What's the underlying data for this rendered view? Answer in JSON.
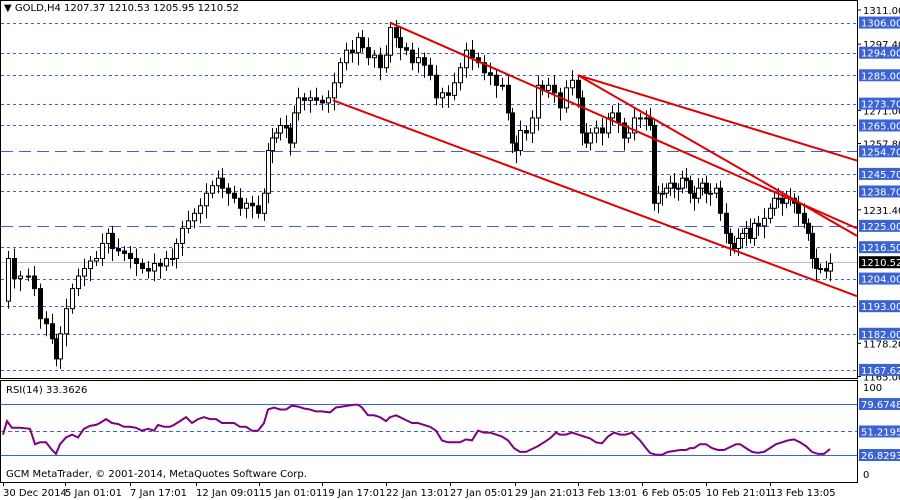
{
  "header": {
    "symbol": "GOLD,H4",
    "ohlc": "1207.37 1210.53 1205.95 1210.52",
    "title_text": "GOLD,H4  1207.37 1210.53 1205.95 1210.52"
  },
  "rsi_panel": {
    "title": "RSI(14) 33.3626",
    "scale": [
      "100",
      "0"
    ],
    "levels": [
      {
        "label": "79.6748",
        "value": 79.6748,
        "style": "solid"
      },
      {
        "label": "51.2195",
        "value": 51.2195,
        "style": "dotted"
      },
      {
        "label": "26.8293",
        "value": 26.8293,
        "style": "solid"
      }
    ]
  },
  "footer": {
    "copyright": "GCM MetaTrader, © 2001-2014, MetaQuotes Software Corp."
  },
  "colors": {
    "level_line": "#3b63d4",
    "label_bg": "#3b63d4",
    "trend_line": "#e00000",
    "rsi_line": "#800080",
    "current_price_bg": "#000000"
  },
  "chart_data": {
    "type": "candlestick",
    "title": "GOLD,H4",
    "ohlc_last": {
      "open": 1207.37,
      "high": 1210.53,
      "low": 1205.95,
      "close": 1210.52
    },
    "price_scale_ticks": [
      "1311.00",
      "1297.40",
      "1271.00",
      "1257.80",
      "1231.40",
      "1178.20",
      "1165.00"
    ],
    "horizontal_levels": [
      {
        "label": "1306.00",
        "value": 1306.0,
        "style": "dotted"
      },
      {
        "label": "1294.00",
        "value": 1294.0,
        "style": "dotted"
      },
      {
        "label": "1285.00",
        "value": 1285.0,
        "style": "dotted"
      },
      {
        "label": "1273.70",
        "value": 1273.7,
        "style": "dotted"
      },
      {
        "label": "1265.00",
        "value": 1265.0,
        "style": "dotted"
      },
      {
        "label": "1254.70",
        "value": 1254.7,
        "style": "dashed"
      },
      {
        "label": "1245.70",
        "value": 1245.7,
        "style": "dotted"
      },
      {
        "label": "1238.70",
        "value": 1238.7,
        "style": "dotted"
      },
      {
        "label": "1225.00",
        "value": 1225.0,
        "style": "dashed"
      },
      {
        "label": "1216.50",
        "value": 1216.5,
        "style": "dotted"
      },
      {
        "label": "1204.00",
        "value": 1204.0,
        "style": "dotted"
      },
      {
        "label": "1193.00",
        "value": 1193.0,
        "style": "dotted"
      },
      {
        "label": "1182.00",
        "value": 1182.0,
        "style": "dotted"
      },
      {
        "label": "1167.62",
        "value": 1167.62,
        "style": "dotted"
      }
    ],
    "current_price": {
      "label": "1210.52",
      "value": 1210.52
    },
    "x_tick_labels": [
      "30 Dec 2014",
      "5 Jan 01:01",
      "7 Jan 17:01",
      "12 Jan 09:01",
      "15 Jan 01:01",
      "19 Jan 17:01",
      "22 Jan 13:01",
      "27 Jan 05:01",
      "29 Jan 21:01",
      "3 Feb 13:01",
      "6 Feb 05:05",
      "10 Feb 21:01",
      "13 Feb 13:05"
    ],
    "trend_lines": [
      {
        "name": "channel-upper",
        "from": [
          390,
          1306
        ],
        "to": [
          857,
          1224
        ]
      },
      {
        "name": "channel-lower",
        "from": [
          333,
          1275
        ],
        "to": [
          857,
          1197
        ]
      },
      {
        "name": "inner-upper",
        "from": [
          578,
          1285
        ],
        "to": [
          857,
          1251
        ]
      },
      {
        "name": "inner-steep",
        "from": [
          578,
          1285
        ],
        "to": [
          857,
          1221
        ]
      }
    ],
    "close_path": [
      [
        3,
        1195
      ],
      [
        8,
        1212
      ],
      [
        14,
        1204
      ],
      [
        20,
        1205
      ],
      [
        28,
        1205
      ],
      [
        34,
        1200
      ],
      [
        40,
        1188
      ],
      [
        46,
        1186
      ],
      [
        52,
        1180
      ],
      [
        56,
        1172
      ],
      [
        60,
        1182
      ],
      [
        66,
        1192
      ],
      [
        72,
        1200
      ],
      [
        78,
        1205
      ],
      [
        84,
        1208
      ],
      [
        90,
        1211
      ],
      [
        96,
        1212
      ],
      [
        102,
        1218
      ],
      [
        108,
        1222
      ],
      [
        112,
        1216
      ],
      [
        118,
        1215
      ],
      [
        124,
        1214
      ],
      [
        130,
        1212
      ],
      [
        136,
        1210
      ],
      [
        142,
        1208
      ],
      [
        148,
        1207
      ],
      [
        154,
        1210
      ],
      [
        160,
        1209
      ],
      [
        166,
        1212
      ],
      [
        172,
        1212
      ],
      [
        176,
        1218
      ],
      [
        182,
        1224
      ],
      [
        188,
        1227
      ],
      [
        194,
        1230
      ],
      [
        200,
        1233
      ],
      [
        206,
        1238
      ],
      [
        212,
        1241
      ],
      [
        218,
        1244
      ],
      [
        222,
        1240
      ],
      [
        228,
        1238
      ],
      [
        234,
        1236
      ],
      [
        240,
        1232
      ],
      [
        246,
        1234
      ],
      [
        252,
        1233
      ],
      [
        258,
        1230
      ],
      [
        264,
        1238
      ],
      [
        268,
        1255
      ],
      [
        272,
        1260
      ],
      [
        276,
        1262
      ],
      [
        280,
        1265
      ],
      [
        286,
        1264
      ],
      [
        290,
        1258
      ],
      [
        294,
        1270
      ],
      [
        298,
        1276
      ],
      [
        304,
        1275
      ],
      [
        310,
        1276
      ],
      [
        316,
        1275
      ],
      [
        322,
        1274
      ],
      [
        328,
        1276
      ],
      [
        334,
        1282
      ],
      [
        340,
        1290
      ],
      [
        346,
        1295
      ],
      [
        352,
        1294
      ],
      [
        358,
        1300
      ],
      [
        362,
        1296
      ],
      [
        368,
        1292
      ],
      [
        374,
        1293
      ],
      [
        380,
        1288
      ],
      [
        386,
        1293
      ],
      [
        390,
        1304
      ],
      [
        396,
        1300
      ],
      [
        400,
        1296
      ],
      [
        406,
        1295
      ],
      [
        412,
        1290
      ],
      [
        418,
        1292
      ],
      [
        424,
        1289
      ],
      [
        430,
        1285
      ],
      [
        436,
        1276
      ],
      [
        442,
        1278
      ],
      [
        448,
        1277
      ],
      [
        454,
        1282
      ],
      [
        460,
        1288
      ],
      [
        466,
        1295
      ],
      [
        472,
        1292
      ],
      [
        478,
        1290
      ],
      [
        484,
        1286
      ],
      [
        490,
        1285
      ],
      [
        496,
        1281
      ],
      [
        502,
        1281
      ],
      [
        508,
        1270
      ],
      [
        512,
        1258
      ],
      [
        516,
        1255
      ],
      [
        520,
        1263
      ],
      [
        526,
        1262
      ],
      [
        532,
        1268
      ],
      [
        538,
        1281
      ],
      [
        542,
        1279
      ],
      [
        548,
        1281
      ],
      [
        554,
        1278
      ],
      [
        560,
        1272
      ],
      [
        566,
        1280
      ],
      [
        572,
        1283
      ],
      [
        578,
        1276
      ],
      [
        582,
        1262
      ],
      [
        586,
        1258
      ],
      [
        590,
        1262
      ],
      [
        596,
        1264
      ],
      [
        602,
        1262
      ],
      [
        608,
        1268
      ],
      [
        612,
        1270
      ],
      [
        618,
        1266
      ],
      [
        624,
        1260
      ],
      [
        628,
        1262
      ],
      [
        634,
        1268
      ],
      [
        640,
        1268
      ],
      [
        646,
        1268
      ],
      [
        650,
        1265
      ],
      [
        654,
        1234
      ],
      [
        658,
        1238
      ],
      [
        662,
        1238
      ],
      [
        666,
        1240
      ],
      [
        670,
        1242
      ],
      [
        674,
        1240
      ],
      [
        678,
        1240
      ],
      [
        682,
        1244
      ],
      [
        686,
        1243
      ],
      [
        690,
        1238
      ],
      [
        694,
        1236
      ],
      [
        698,
        1240
      ],
      [
        702,
        1242
      ],
      [
        706,
        1238
      ],
      [
        710,
        1238
      ],
      [
        716,
        1240
      ],
      [
        720,
        1230
      ],
      [
        726,
        1222
      ],
      [
        730,
        1218
      ],
      [
        734,
        1216
      ],
      [
        738,
        1220
      ],
      [
        742,
        1222
      ],
      [
        746,
        1224
      ],
      [
        750,
        1220
      ],
      [
        754,
        1226
      ],
      [
        758,
        1225
      ],
      [
        764,
        1228
      ],
      [
        770,
        1232
      ],
      [
        774,
        1236
      ],
      [
        778,
        1236
      ],
      [
        782,
        1234
      ],
      [
        786,
        1236
      ],
      [
        790,
        1236
      ],
      [
        794,
        1234
      ],
      [
        798,
        1230
      ],
      [
        804,
        1226
      ],
      [
        808,
        1222
      ],
      [
        812,
        1212
      ],
      [
        816,
        1208
      ],
      [
        820,
        1208
      ],
      [
        826,
        1207
      ],
      [
        830,
        1210
      ]
    ],
    "rsi": {
      "name": "RSI(14)",
      "current": 33.3626,
      "ylim": [
        0,
        100
      ],
      "points_x_y": [
        [
          3,
          48
        ],
        [
          7,
          62
        ],
        [
          12,
          55
        ],
        [
          20,
          55
        ],
        [
          30,
          54
        ],
        [
          35,
          38
        ],
        [
          40,
          40
        ],
        [
          46,
          40
        ],
        [
          52,
          32
        ],
        [
          56,
          28
        ],
        [
          60,
          38
        ],
        [
          66,
          45
        ],
        [
          72,
          48
        ],
        [
          78,
          45
        ],
        [
          84,
          54
        ],
        [
          90,
          57
        ],
        [
          96,
          58
        ],
        [
          100,
          60
        ],
        [
          106,
          64
        ],
        [
          112,
          60
        ],
        [
          118,
          59
        ],
        [
          124,
          56
        ],
        [
          130,
          56
        ],
        [
          136,
          55
        ],
        [
          142,
          52
        ],
        [
          148,
          54
        ],
        [
          154,
          52
        ],
        [
          158,
          58
        ],
        [
          164,
          56
        ],
        [
          170,
          56
        ],
        [
          174,
          58
        ],
        [
          180,
          62
        ],
        [
          186,
          66
        ],
        [
          192,
          60
        ],
        [
          198,
          64
        ],
        [
          204,
          66
        ],
        [
          210,
          64
        ],
        [
          216,
          64
        ],
        [
          222,
          60
        ],
        [
          228,
          60
        ],
        [
          234,
          60
        ],
        [
          240,
          56
        ],
        [
          246,
          56
        ],
        [
          252,
          52
        ],
        [
          258,
          52
        ],
        [
          264,
          60
        ],
        [
          268,
          74
        ],
        [
          274,
          76
        ],
        [
          280,
          74
        ],
        [
          286,
          74
        ],
        [
          292,
          78
        ],
        [
          298,
          77
        ],
        [
          304,
          75
        ],
        [
          310,
          74
        ],
        [
          316,
          72
        ],
        [
          322,
          72
        ],
        [
          330,
          71
        ],
        [
          336,
          76
        ],
        [
          342,
          77
        ],
        [
          348,
          78
        ],
        [
          354,
          79
        ],
        [
          358,
          79
        ],
        [
          362,
          76
        ],
        [
          368,
          68
        ],
        [
          374,
          68
        ],
        [
          380,
          66
        ],
        [
          386,
          62
        ],
        [
          390,
          66
        ],
        [
          396,
          68
        ],
        [
          400,
          66
        ],
        [
          406,
          63
        ],
        [
          412,
          60
        ],
        [
          418,
          60
        ],
        [
          424,
          58
        ],
        [
          430,
          56
        ],
        [
          436,
          52
        ],
        [
          442,
          42
        ],
        [
          448,
          40
        ],
        [
          454,
          40
        ],
        [
          460,
          40
        ],
        [
          466,
          43
        ],
        [
          472,
          42
        ],
        [
          478,
          52
        ],
        [
          484,
          50
        ],
        [
          490,
          50
        ],
        [
          496,
          48
        ],
        [
          502,
          46
        ],
        [
          508,
          42
        ],
        [
          514,
          34
        ],
        [
          520,
          30
        ],
        [
          526,
          30
        ],
        [
          532,
          33
        ],
        [
          538,
          36
        ],
        [
          544,
          40
        ],
        [
          550,
          44
        ],
        [
          556,
          50
        ],
        [
          560,
          48
        ],
        [
          566,
          48
        ],
        [
          572,
          50
        ],
        [
          578,
          48
        ],
        [
          584,
          46
        ],
        [
          590,
          44
        ],
        [
          596,
          40
        ],
        [
          602,
          39
        ],
        [
          608,
          46
        ],
        [
          614,
          50
        ],
        [
          620,
          48
        ],
        [
          626,
          48
        ],
        [
          632,
          50
        ],
        [
          640,
          42
        ],
        [
          646,
          34
        ],
        [
          650,
          29
        ],
        [
          656,
          27
        ],
        [
          662,
          27
        ],
        [
          668,
          30
        ],
        [
          674,
          31
        ],
        [
          680,
          32
        ],
        [
          686,
          32
        ],
        [
          690,
          34
        ],
        [
          694,
          34
        ],
        [
          700,
          38
        ],
        [
          706,
          38
        ],
        [
          712,
          34
        ],
        [
          718,
          32
        ],
        [
          724,
          32
        ],
        [
          730,
          35
        ],
        [
          736,
          38
        ],
        [
          740,
          38
        ],
        [
          746,
          34
        ],
        [
          752,
          30
        ],
        [
          758,
          29
        ],
        [
          764,
          30
        ],
        [
          770,
          34
        ],
        [
          776,
          38
        ],
        [
          782,
          40
        ],
        [
          788,
          42
        ],
        [
          794,
          43
        ],
        [
          800,
          40
        ],
        [
          806,
          36
        ],
        [
          812,
          30
        ],
        [
          818,
          28
        ],
        [
          824,
          28
        ],
        [
          830,
          33
        ]
      ]
    }
  }
}
